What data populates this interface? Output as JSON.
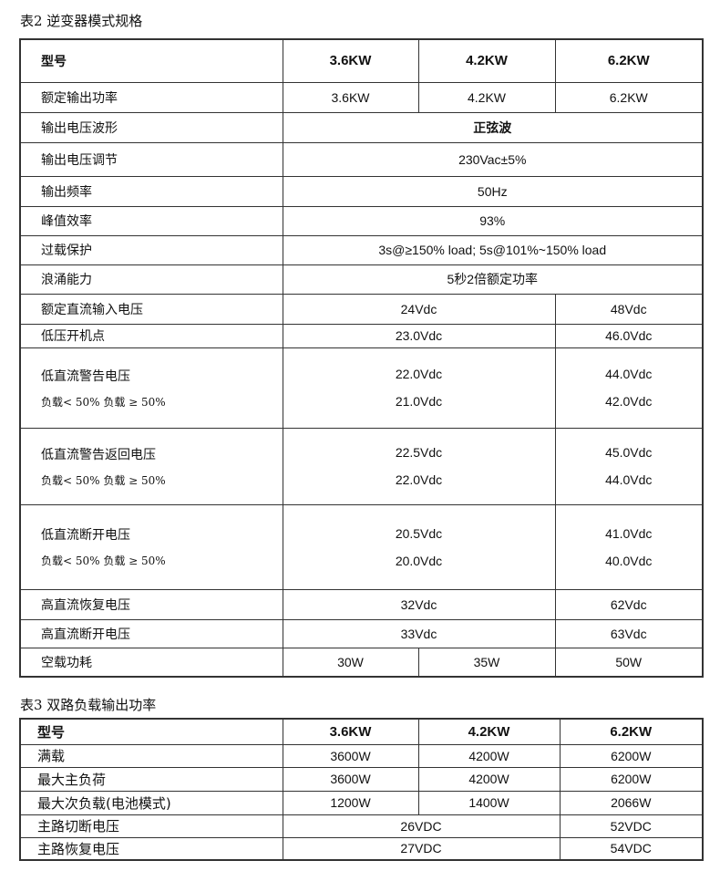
{
  "table2": {
    "title": "表2 逆变器模式规格",
    "header": {
      "label": "型号",
      "models": [
        "3.6KW",
        "4.2KW",
        "6.2KW"
      ]
    },
    "rows": [
      {
        "label": "额定输出功率",
        "cells": [
          "3.6KW",
          "4.2KW",
          "6.2KW"
        ]
      },
      {
        "label": "输出电压波形",
        "span_all": "正弦波",
        "bold": true
      },
      {
        "label": "输出电压调节",
        "span_all": "230Vac±5%"
      },
      {
        "label": "输出频率",
        "span_all": "50Hz"
      },
      {
        "label": "峰值效率",
        "span_all": "93%"
      },
      {
        "label": "过载保护",
        "span_all": "3s@≥150% load; 5s@101%~150% load"
      },
      {
        "label": "浪涌能力",
        "span_all": "5秒2倍额定功率"
      },
      {
        "label": "额定直流输入电压",
        "span_two": [
          "24Vdc"
        ],
        "last": [
          "48Vdc"
        ]
      },
      {
        "label": "低压开机点",
        "span_two": [
          "23.0Vdc"
        ],
        "last": [
          "46.0Vdc"
        ]
      },
      {
        "label": "低直流警告电压",
        "sublabel": "负载< 50%   负载 ≥ 50%",
        "span_two": [
          "22.0Vdc",
          "21.0Vdc"
        ],
        "last": [
          "44.0Vdc",
          "42.0Vdc"
        ]
      },
      {
        "label": "低直流警告返回电压",
        "sublabel": "负载< 50%   负载 ≥ 50%",
        "span_two": [
          "22.5Vdc",
          "22.0Vdc"
        ],
        "last": [
          "45.0Vdc",
          "44.0Vdc"
        ]
      },
      {
        "label": "低直流断开电压",
        "sublabel": "负载< 50%   负载 ≥ 50%",
        "span_two": [
          "20.5Vdc",
          "20.0Vdc"
        ],
        "last": [
          "41.0Vdc",
          "40.0Vdc"
        ]
      },
      {
        "label": "高直流恢复电压",
        "span_two": [
          "32Vdc"
        ],
        "last": [
          "62Vdc"
        ]
      },
      {
        "label": "高直流断开电压",
        "span_two": [
          "33Vdc"
        ],
        "last": [
          "63Vdc"
        ]
      },
      {
        "label": "空载功耗",
        "cells": [
          "30W",
          "35W",
          "50W"
        ]
      }
    ]
  },
  "table3": {
    "title": "表3 双路负载输出功率",
    "header": {
      "label": "型号",
      "models": [
        "3.6KW",
        "4.2KW",
        "6.2KW"
      ]
    },
    "rows": [
      {
        "label": "满载",
        "cells": [
          "3600W",
          "4200W",
          "6200W"
        ]
      },
      {
        "label": "最大主负荷",
        "cells": [
          "3600W",
          "4200W",
          "6200W"
        ]
      },
      {
        "label": "最大次负载(电池模式)",
        "cells": [
          "1200W",
          "1400W",
          "2066W"
        ]
      },
      {
        "label": "主路切断电压",
        "span_two": [
          "26VDC"
        ],
        "last": [
          "52VDC"
        ]
      },
      {
        "label": "主路恢复电压",
        "span_two": [
          "27VDC"
        ],
        "last": [
          "54VDC"
        ]
      }
    ]
  }
}
